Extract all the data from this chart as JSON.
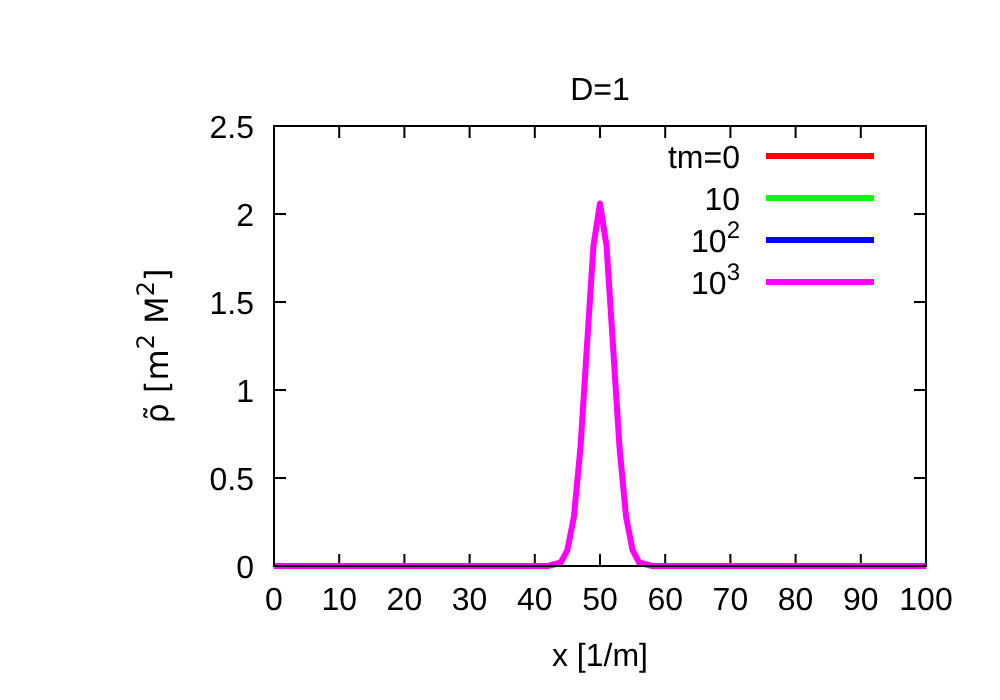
{
  "chart_data": {
    "type": "line",
    "title": "D=1",
    "xlabel": "x [1/m]",
    "ylabel": "ρ̃ [m$^{2}$ M$^{2}$]",
    "x": [
      0,
      42,
      43,
      44,
      45,
      46,
      47,
      48,
      49,
      50,
      51,
      52,
      53,
      54,
      55,
      56,
      57,
      58,
      100
    ],
    "series": [
      {
        "name": "tm=0",
        "color": "#ff0000",
        "values": [
          null,
          null,
          null,
          null,
          null,
          null,
          null,
          null,
          null,
          null,
          null,
          null,
          null,
          null,
          null,
          null,
          null,
          null,
          null
        ]
      },
      {
        "name": "10",
        "color": "#00ff00",
        "values": [
          null,
          null,
          null,
          null,
          null,
          null,
          null,
          null,
          null,
          null,
          null,
          null,
          null,
          null,
          null,
          null,
          null,
          null,
          null
        ]
      },
      {
        "name": "10$^{2}$",
        "color": "#0000ff",
        "values": [
          null,
          null,
          null,
          null,
          null,
          null,
          null,
          null,
          null,
          null,
          null,
          null,
          null,
          null,
          null,
          null,
          null,
          null,
          null
        ]
      },
      {
        "name": "10$^{3}$",
        "color": "#ff00ff",
        "values": [
          0,
          0,
          0.01,
          0.02,
          0.09,
          0.28,
          0.67,
          1.25,
          1.82,
          2.06,
          1.82,
          1.25,
          0.67,
          0.28,
          0.09,
          0.02,
          0.01,
          0,
          0
        ]
      }
    ],
    "xlim": [
      0,
      100
    ],
    "xticks": [
      0,
      10,
      20,
      30,
      40,
      50,
      60,
      70,
      80,
      90,
      100
    ],
    "ylim": [
      0,
      2.5
    ],
    "yticks": [
      0,
      0.5,
      1,
      1.5,
      2,
      2.5
    ],
    "grid": false,
    "legend": "top right",
    "marker": "none",
    "line_style": "solid"
  }
}
